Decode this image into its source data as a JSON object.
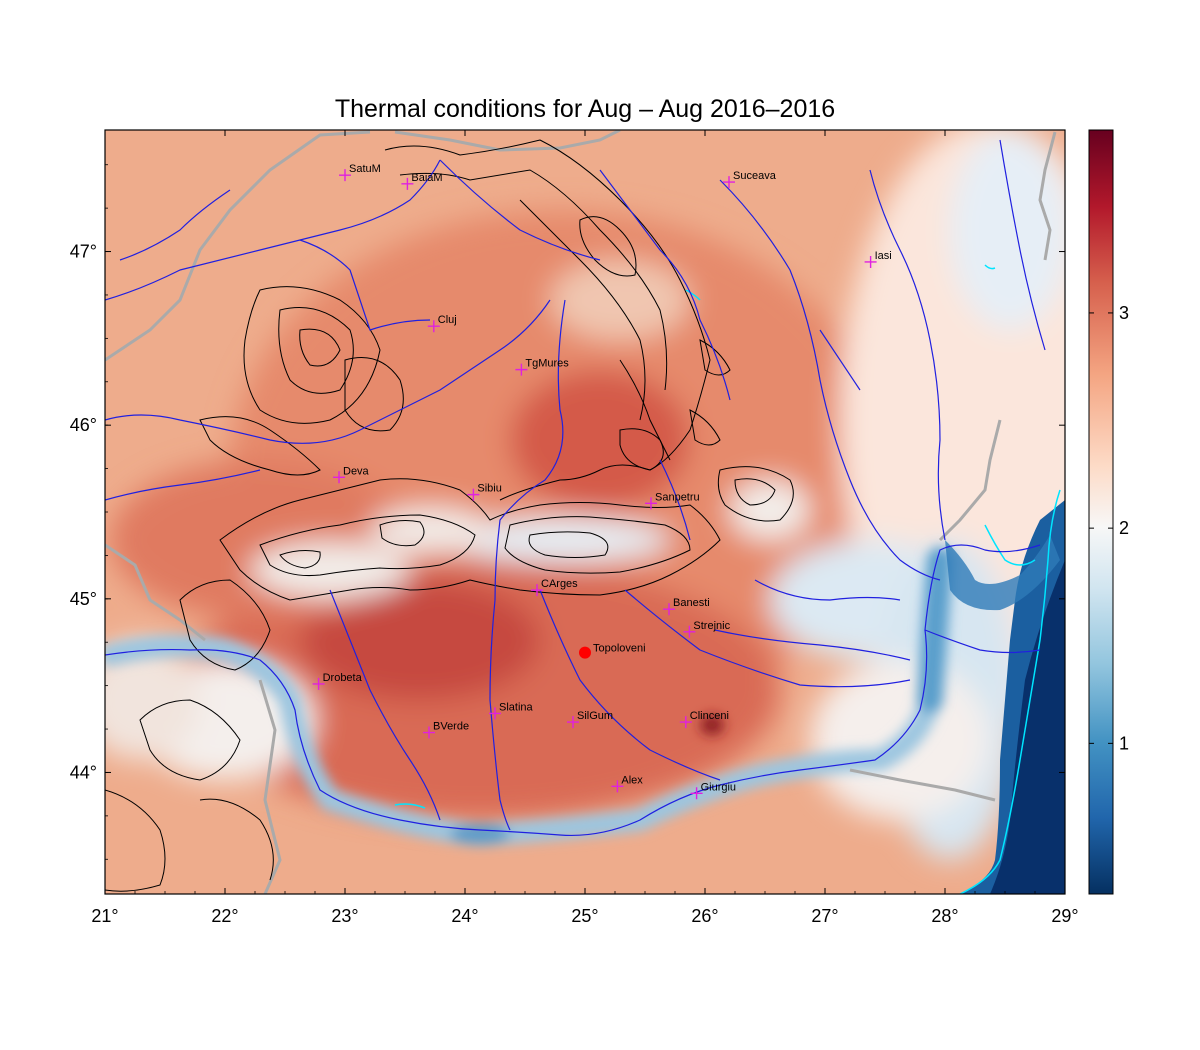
{
  "title": "Thermal conditions for Aug – Aug  2016–2016",
  "map": {
    "lon_range": [
      21,
      29
    ],
    "lat_range": [
      43.3,
      47.7
    ],
    "x_ticks": [
      {
        "value": 21,
        "label": "21°"
      },
      {
        "value": 22,
        "label": "22°"
      },
      {
        "value": 23,
        "label": "23°"
      },
      {
        "value": 24,
        "label": "24°"
      },
      {
        "value": 25,
        "label": "25°"
      },
      {
        "value": 26,
        "label": "26°"
      },
      {
        "value": 27,
        "label": "27°"
      },
      {
        "value": 28,
        "label": "28°"
      },
      {
        "value": 29,
        "label": "29°"
      }
    ],
    "y_ticks": [
      {
        "value": 44,
        "label": "44°"
      },
      {
        "value": 45,
        "label": "45°"
      },
      {
        "value": 46,
        "label": "46°"
      },
      {
        "value": 47,
        "label": "47°"
      }
    ],
    "cities": [
      {
        "name": "SatuM",
        "lon": 23.0,
        "lat": 47.44
      },
      {
        "name": "BaiaM",
        "lon": 23.52,
        "lat": 47.39
      },
      {
        "name": "Suceava",
        "lon": 26.2,
        "lat": 47.4
      },
      {
        "name": "Iasi",
        "lon": 27.38,
        "lat": 46.94
      },
      {
        "name": "Cluj",
        "lon": 23.74,
        "lat": 46.57
      },
      {
        "name": "TgMures",
        "lon": 24.47,
        "lat": 46.32
      },
      {
        "name": "Deva",
        "lon": 22.95,
        "lat": 45.7
      },
      {
        "name": "Sibiu",
        "lon": 24.07,
        "lat": 45.6
      },
      {
        "name": "Sanpetru",
        "lon": 25.55,
        "lat": 45.55
      },
      {
        "name": "CArges",
        "lon": 24.6,
        "lat": 45.05
      },
      {
        "name": "Banesti",
        "lon": 25.7,
        "lat": 44.94
      },
      {
        "name": "Strejnic",
        "lon": 25.87,
        "lat": 44.81
      },
      {
        "name": "Drobeta",
        "lon": 22.78,
        "lat": 44.51
      },
      {
        "name": "Slatina",
        "lon": 24.25,
        "lat": 44.34
      },
      {
        "name": "SilGum",
        "lon": 24.9,
        "lat": 44.29
      },
      {
        "name": "Clinceni",
        "lon": 25.84,
        "lat": 44.29
      },
      {
        "name": "BVerde",
        "lon": 23.7,
        "lat": 44.23
      },
      {
        "name": "Alex",
        "lon": 25.27,
        "lat": 43.92
      },
      {
        "name": "Giurgiu",
        "lon": 25.93,
        "lat": 43.88
      }
    ],
    "highlight_station": {
      "name": "Topoloveni",
      "lon": 25.0,
      "lat": 44.69
    },
    "colors": {
      "city_marker": "#e020e0",
      "highlight_marker": "#ff0000",
      "rivers": "#2020e0",
      "borders": "#aaaaaa",
      "contours": "#000000",
      "lakes": "#00e5ff"
    }
  },
  "colorbar": {
    "min": 0.3,
    "max": 3.85,
    "ticks": [
      {
        "value": 1,
        "label": "1"
      },
      {
        "value": 2,
        "label": "2"
      },
      {
        "value": 3,
        "label": "3"
      }
    ],
    "colors": [
      "#053061",
      "#2166ac",
      "#4393c3",
      "#92c5de",
      "#d1e5f0",
      "#f7f7f7",
      "#fddbc7",
      "#f4a582",
      "#d6604d",
      "#b2182b",
      "#67001f"
    ]
  }
}
